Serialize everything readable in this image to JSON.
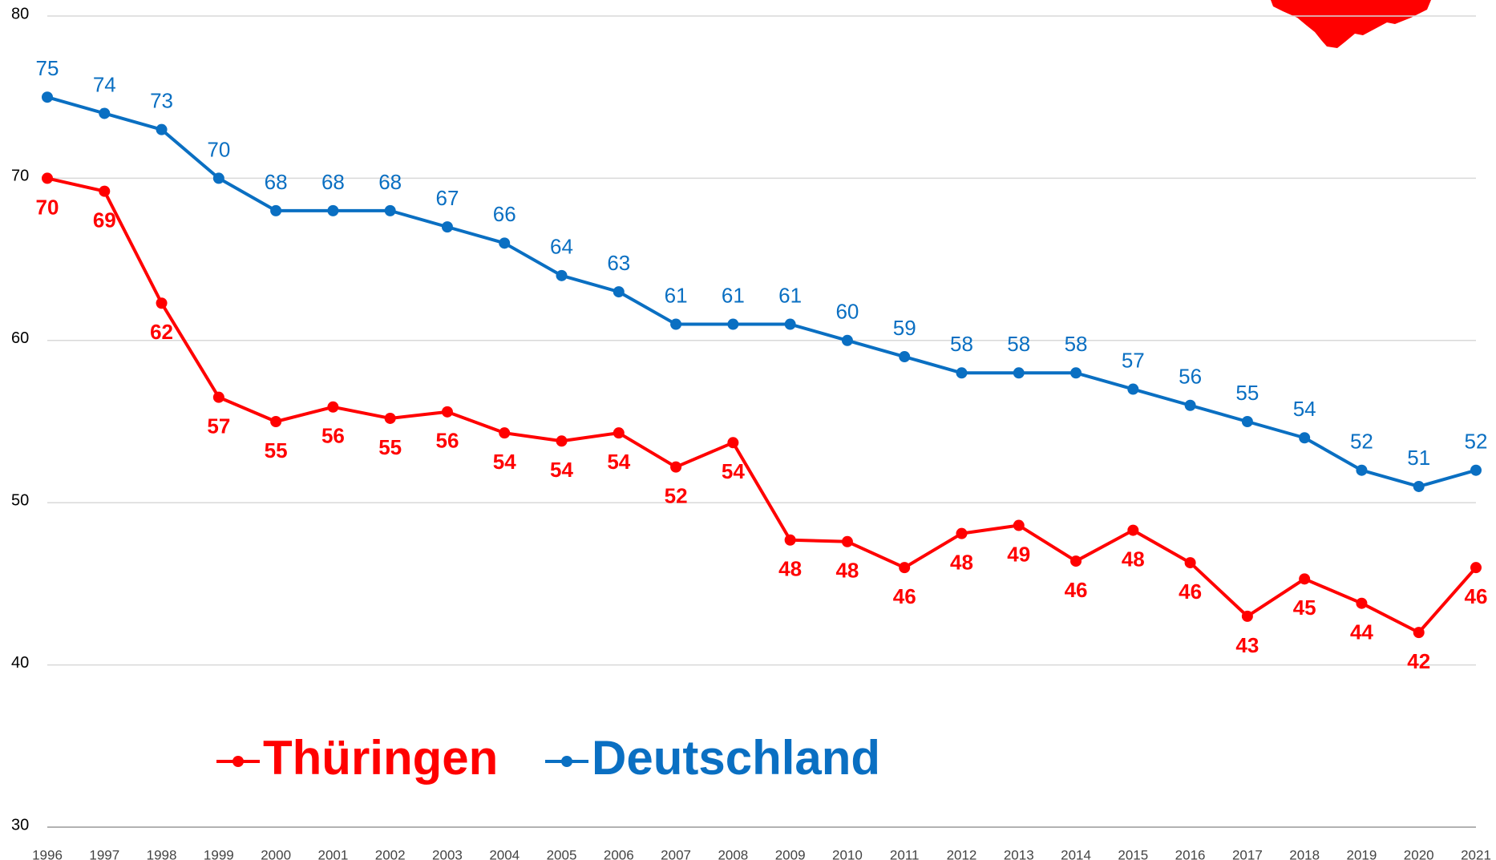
{
  "chart_data": {
    "type": "line",
    "x": [
      "1996",
      "1997",
      "1998",
      "1999",
      "2000",
      "2001",
      "2002",
      "2003",
      "2004",
      "2005",
      "2006",
      "2007",
      "2008",
      "2009",
      "2010",
      "2011",
      "2012",
      "2013",
      "2014",
      "2015",
      "2016",
      "2017",
      "2018",
      "2019",
      "2020",
      "2021"
    ],
    "series": [
      {
        "name": "Thüringen",
        "color": "#ff0000",
        "values": [
          70,
          69.2,
          62.3,
          56.5,
          55,
          55.9,
          55.2,
          55.6,
          54.3,
          53.8,
          54.3,
          52.2,
          53.7,
          47.7,
          47.6,
          46,
          48.1,
          48.6,
          46.4,
          48.3,
          46.3,
          43,
          45.3,
          43.8,
          42,
          46
        ],
        "value_labels": [
          "70",
          "69",
          "62",
          "57",
          "55",
          "56",
          "55",
          "56",
          "54",
          "54",
          "54",
          "52",
          "54",
          "48",
          "48",
          "46",
          "48",
          "49",
          "46",
          "48",
          "46",
          "43",
          "45",
          "44",
          "42",
          "46"
        ]
      },
      {
        "name": "Deutschland",
        "color": "#0a6fc2",
        "values": [
          75,
          74,
          73,
          70,
          68,
          68,
          68,
          67,
          66,
          64,
          63,
          61,
          61,
          61,
          60,
          59,
          58,
          58,
          58,
          57,
          56,
          55,
          54,
          52,
          51,
          52
        ]
      }
    ],
    "ylim": [
      30,
      80
    ],
    "yticks": [
      30,
      40,
      50,
      60,
      70,
      80
    ],
    "grid": true
  }
}
